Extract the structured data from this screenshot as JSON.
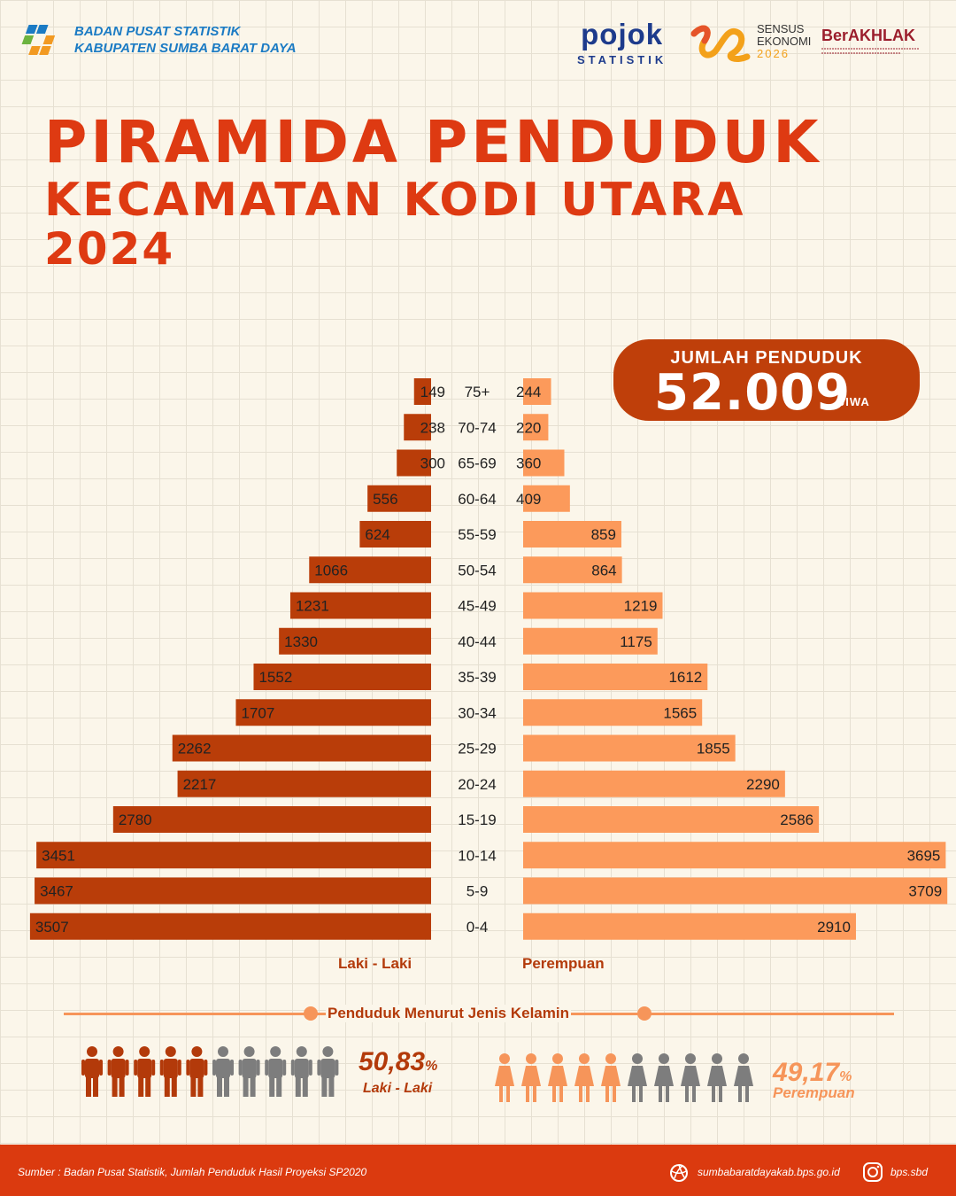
{
  "header": {
    "org_line1": "BADAN PUSAT STATISTIK",
    "org_line2": "KABUPATEN SUMBA BARAT DAYA",
    "pojok_line1": "pojok",
    "pojok_line2": "STATISTIK",
    "sensus_line1": "SENSUS",
    "sensus_line2": "EKONOMI",
    "sensus_year": "2026",
    "berakhlak": "BerAKHLAK"
  },
  "title": {
    "line1": "PIRAMIDA PENDUDUK",
    "line2": "KECAMATAN KODI UTARA",
    "line3": "2024"
  },
  "total": {
    "label": "JUMLAH PENDUDUK",
    "value": "52.009",
    "unit": "JIWA"
  },
  "chart_data": {
    "type": "bar",
    "orientation": "horizontal-pyramid",
    "categories": [
      "75+",
      "70-74",
      "65-69",
      "60-64",
      "55-59",
      "50-54",
      "45-49",
      "40-44",
      "35-39",
      "30-34",
      "25-29",
      "20-24",
      "15-19",
      "10-14",
      "5-9",
      "0-4"
    ],
    "series": [
      {
        "name": "Laki - Laki",
        "color": "#b93d09",
        "values": [
          149,
          238,
          300,
          556,
          624,
          1066,
          1231,
          1330,
          1552,
          1707,
          2262,
          2217,
          2780,
          3451,
          3467,
          3507
        ]
      },
      {
        "name": "Perempuan",
        "color": "#fc9a5b",
        "values": [
          244,
          220,
          360,
          409,
          859,
          864,
          1219,
          1175,
          1612,
          1565,
          1855,
          2290,
          2586,
          3695,
          3709,
          2910
        ]
      }
    ]
  },
  "gender": {
    "title": "Penduduk Menurut Jenis Kelamin",
    "male_pct": "50,83",
    "female_pct": "49,17",
    "pct_sign": "%",
    "male_label": "Laki - Laki",
    "female_label": "Perempuan",
    "male_share": 0.5083,
    "female_share": 0.4917,
    "male_color": "#b33a0a",
    "female_color": "#f6955a",
    "neutral_color": "#7d7d7d"
  },
  "footer": {
    "source": "Sumber : Badan Pusat Statistik, Jumlah Penduduk Hasil Proyeksi SP2020",
    "website": "sumbabaratdayakab.bps.go.id",
    "instagram": "bps.sbd"
  }
}
